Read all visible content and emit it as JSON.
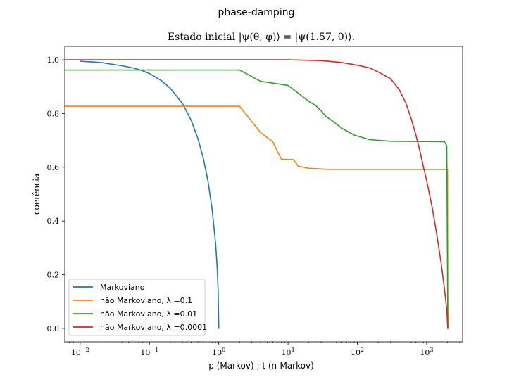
{
  "chart_data": {
    "type": "line",
    "suptitle": "phase-damping",
    "title": "Estado inicial |ψ(θ, φ)⟩ = |ψ(1.57, 0)⟩.",
    "xlabel": "p (Markov) ; t (n-Markov)",
    "ylabel": "coerência",
    "xscale": "log",
    "xlim": [
      0.006,
      3300
    ],
    "ylim": [
      -0.05,
      1.05
    ],
    "yticks": [
      0.0,
      0.2,
      0.4,
      0.6,
      0.8,
      1.0
    ],
    "ytick_labels": [
      "0.0",
      "0.2",
      "0.4",
      "0.6",
      "0.8",
      "1.0"
    ],
    "xticks": [
      0.01,
      0.1,
      1,
      10,
      100,
      1000
    ],
    "xtick_labels": [
      {
        "base": "10",
        "exp": "−2"
      },
      {
        "base": "10",
        "exp": "−1"
      },
      {
        "base": "10",
        "exp": "0"
      },
      {
        "base": "10",
        "exp": "1"
      },
      {
        "base": "10",
        "exp": "2"
      },
      {
        "base": "10",
        "exp": "3"
      }
    ],
    "grid": false,
    "legend_position": "lower-left",
    "series": [
      {
        "name": "Markoviano",
        "color": "#1f77b4",
        "points": [
          [
            0.01,
            0.995
          ],
          [
            0.02,
            0.99
          ],
          [
            0.04,
            0.978
          ],
          [
            0.06,
            0.969
          ],
          [
            0.08,
            0.959
          ],
          [
            0.1,
            0.949
          ],
          [
            0.15,
            0.922
          ],
          [
            0.2,
            0.894
          ],
          [
            0.3,
            0.837
          ],
          [
            0.4,
            0.775
          ],
          [
            0.5,
            0.707
          ],
          [
            0.6,
            0.632
          ],
          [
            0.7,
            0.548
          ],
          [
            0.8,
            0.447
          ],
          [
            0.9,
            0.316
          ],
          [
            0.95,
            0.224
          ],
          [
            0.98,
            0.141
          ],
          [
            1.0,
            0.0
          ]
        ]
      },
      {
        "name": "não Markoviano, λ =0.1",
        "color": "#ff7f0e",
        "points": [
          [
            0.006,
            0.827
          ],
          [
            2.0,
            0.827
          ],
          [
            4.0,
            0.73
          ],
          [
            6.0,
            0.695
          ],
          [
            8.0,
            0.63
          ],
          [
            12.0,
            0.628
          ],
          [
            14.0,
            0.604
          ],
          [
            20.0,
            0.596
          ],
          [
            40.0,
            0.592
          ],
          [
            2000.0,
            0.592
          ],
          [
            2020.0,
            0.0
          ]
        ]
      },
      {
        "name": "não Markoviano, λ =0.01",
        "color": "#2ca02c",
        "points": [
          [
            0.006,
            0.962
          ],
          [
            2.0,
            0.962
          ],
          [
            4.0,
            0.92
          ],
          [
            10.0,
            0.905
          ],
          [
            15.0,
            0.87
          ],
          [
            20.0,
            0.845
          ],
          [
            25.0,
            0.83
          ],
          [
            30.0,
            0.81
          ],
          [
            35.0,
            0.79
          ],
          [
            45.0,
            0.77
          ],
          [
            60.0,
            0.745
          ],
          [
            90.0,
            0.72
          ],
          [
            150.0,
            0.703
          ],
          [
            300.0,
            0.697
          ],
          [
            1800.0,
            0.695
          ],
          [
            1950.0,
            0.68
          ],
          [
            2020.0,
            0.0
          ]
        ]
      },
      {
        "name": "não Markoviano, λ =0.0001",
        "color": "#d62728",
        "points": [
          [
            0.006,
            1.0
          ],
          [
            10.0,
            1.0
          ],
          [
            30.0,
            0.997
          ],
          [
            60.0,
            0.99
          ],
          [
            100.0,
            0.98
          ],
          [
            150.0,
            0.97
          ],
          [
            200.0,
            0.955
          ],
          [
            300.0,
            0.93
          ],
          [
            400.0,
            0.89
          ],
          [
            500.0,
            0.84
          ],
          [
            600.0,
            0.78
          ],
          [
            700.0,
            0.72
          ],
          [
            800.0,
            0.66
          ],
          [
            900.0,
            0.6
          ],
          [
            1000.0,
            0.55
          ],
          [
            1200.0,
            0.45
          ],
          [
            1400.0,
            0.35
          ],
          [
            1600.0,
            0.25
          ],
          [
            1800.0,
            0.15
          ],
          [
            1950.0,
            0.07
          ],
          [
            2020.0,
            0.0
          ]
        ]
      }
    ]
  }
}
